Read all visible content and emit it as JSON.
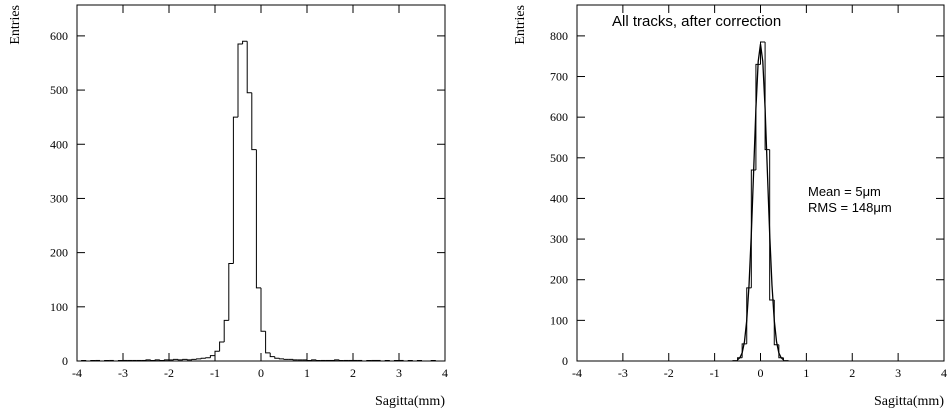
{
  "chart_data": [
    {
      "type": "histogram",
      "x_label": "Sagitta(mm)",
      "y_label": "Entries",
      "bins": [
        -4,
        -3.9,
        -3.8,
        -3.7,
        -3.6,
        -3.5,
        -3.4,
        -3.3,
        -3.2,
        -3.1,
        -3,
        -2.9,
        -2.8,
        -2.7,
        -2.6,
        -2.5,
        -2.4,
        -2.3,
        -2.2,
        -2.1,
        -2,
        -1.9,
        -1.8,
        -1.7,
        -1.6,
        -1.5,
        -1.4,
        -1.3,
        -1.2,
        -1.1,
        -1,
        -0.9,
        -0.8,
        -0.7,
        -0.6,
        -0.5,
        -0.4,
        -0.3,
        -0.2,
        -0.1,
        0,
        0.1,
        0.2,
        0.3,
        0.4,
        0.5,
        0.6,
        0.7,
        0.8,
        0.9,
        1,
        1.1,
        1.2,
        1.3,
        1.4,
        1.5,
        1.6,
        1.7,
        1.8,
        1.9,
        2,
        2.1,
        2.2,
        2.3,
        2.4,
        2.5,
        2.6,
        2.7,
        2.8,
        2.9,
        3,
        3.1,
        3.2,
        3.3,
        3.4,
        3.5,
        3.6,
        3.7,
        3.8,
        3.9,
        4
      ],
      "values": [
        0,
        1,
        0,
        1,
        1,
        0,
        1,
        1,
        0,
        1,
        1,
        1,
        1,
        1,
        1,
        2,
        1,
        2,
        1,
        2,
        2,
        3,
        2,
        3,
        2,
        3,
        4,
        5,
        6,
        10,
        18,
        35,
        75,
        180,
        450,
        585,
        590,
        495,
        390,
        135,
        55,
        15,
        8,
        5,
        4,
        3,
        3,
        2,
        2,
        2,
        1,
        2,
        1,
        1,
        1,
        1,
        2,
        1,
        1,
        1,
        1,
        1,
        0,
        1,
        1,
        1,
        0,
        1,
        0,
        1,
        1,
        0,
        1,
        0,
        1,
        0,
        0,
        1,
        0,
        0
      ],
      "color": "#000000",
      "xlim": [
        -4,
        4
      ],
      "xticks": [
        -4,
        -3,
        -2,
        -1,
        0,
        1,
        2,
        3,
        4
      ],
      "ylim": [
        0,
        657
      ],
      "yticks": [
        0,
        100,
        200,
        300,
        400,
        500,
        600
      ]
    },
    {
      "type": "histogram",
      "x_label": "Sagitta(mm)",
      "y_label": "Entries",
      "title": "All tracks, after correction",
      "annotations": [
        "Mean = 5μm",
        "RMS = 148μm"
      ],
      "bins": [
        -0.6,
        -0.5,
        -0.4,
        -0.3,
        -0.2,
        -0.1,
        0,
        0.1,
        0.2,
        0.3,
        0.4,
        0.5,
        0.6
      ],
      "values": [
        1,
        8,
        42,
        180,
        470,
        730,
        785,
        520,
        150,
        40,
        8,
        1
      ],
      "fit": {
        "x": [
          -0.5,
          -0.45,
          -0.4,
          -0.35,
          -0.3,
          -0.25,
          -0.2,
          -0.15,
          -0.1,
          -0.05,
          0,
          0.05,
          0.1,
          0.15,
          0.2,
          0.25,
          0.3,
          0.35,
          0.4,
          0.45,
          0.5
        ],
        "values": [
          3,
          8,
          20,
          47,
          100,
          187,
          313,
          466,
          621,
          737,
          780,
          737,
          621,
          466,
          313,
          187,
          100,
          47,
          20,
          8,
          3
        ]
      },
      "color": "#000000",
      "xlim": [
        -4,
        4
      ],
      "xticks": [
        -4,
        -3,
        -2,
        -1,
        0,
        1,
        2,
        3,
        4
      ],
      "ylim": [
        0,
        876
      ],
      "yticks": [
        0,
        100,
        200,
        300,
        400,
        500,
        600,
        700,
        800
      ]
    }
  ]
}
